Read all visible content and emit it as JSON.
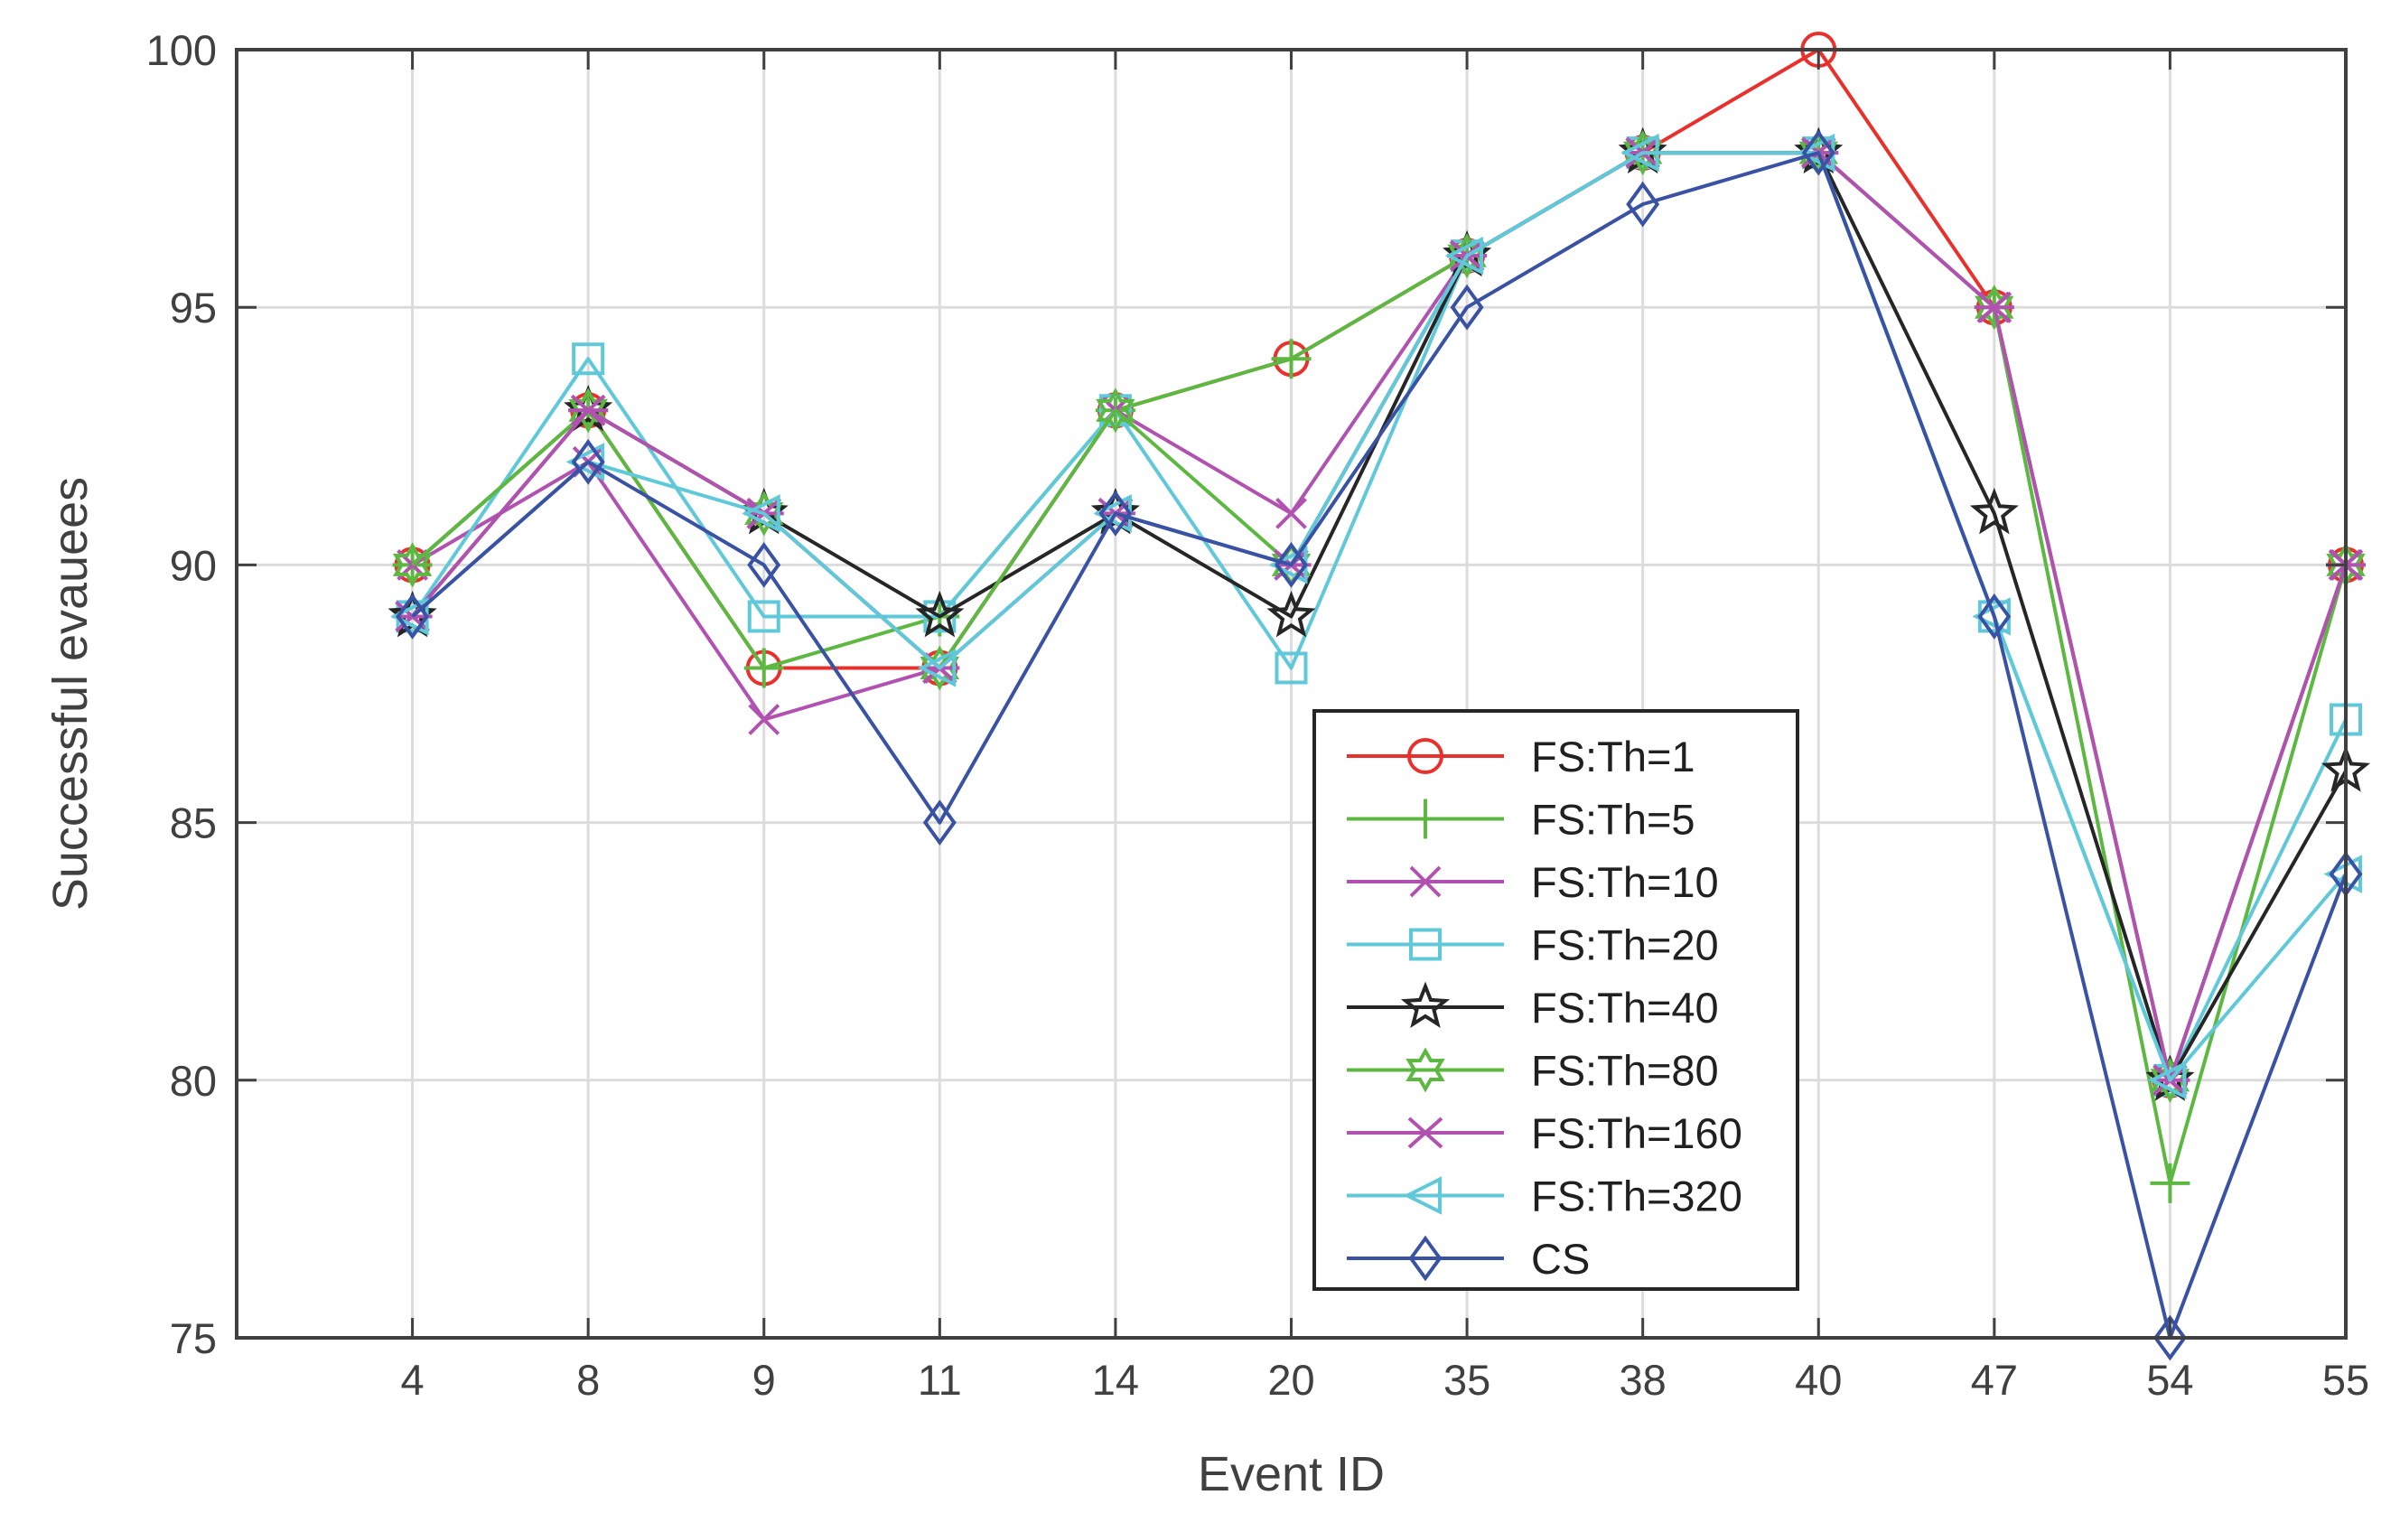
{
  "chart_data": {
    "type": "line",
    "title": "",
    "xlabel": "Event ID",
    "ylabel": "Successful evauees",
    "categories": [
      "4",
      "8",
      "9",
      "11",
      "14",
      "20",
      "35",
      "38",
      "40",
      "47",
      "54",
      "55"
    ],
    "ylim": [
      75,
      100
    ],
    "yticks": [
      75,
      80,
      85,
      90,
      95,
      100
    ],
    "grid": true,
    "legend_position": "bottom-center",
    "series": [
      {
        "name": "FS:Th=1",
        "color": "#e8302c",
        "marker": "circle",
        "values": [
          90,
          93,
          88,
          88,
          93,
          94,
          96,
          98,
          100,
          95,
          80,
          90
        ]
      },
      {
        "name": "FS:Th=5",
        "color": "#5db842",
        "marker": "plus",
        "values": [
          90,
          93,
          88,
          89,
          93,
          94,
          96,
          98,
          98,
          95,
          78,
          90
        ]
      },
      {
        "name": "FS:Th=10",
        "color": "#b152b0",
        "marker": "x",
        "values": [
          90,
          92,
          87,
          88,
          93,
          91,
          96,
          98,
          98,
          95,
          80,
          90
        ]
      },
      {
        "name": "FS:Th=20",
        "color": "#5fc8d9",
        "marker": "square",
        "values": [
          89,
          94,
          89,
          89,
          93,
          88,
          96,
          98,
          98,
          89,
          80,
          87
        ]
      },
      {
        "name": "FS:Th=40",
        "color": "#262626",
        "marker": "pentagram",
        "values": [
          89,
          93,
          91,
          89,
          91,
          89,
          96,
          98,
          98,
          91,
          80,
          86
        ]
      },
      {
        "name": "FS:Th=80",
        "color": "#5db842",
        "marker": "hexagram",
        "values": [
          90,
          93,
          91,
          88,
          93,
          90,
          96,
          98,
          98,
          95,
          80,
          90
        ]
      },
      {
        "name": "FS:Th=160",
        "color": "#b152b0",
        "marker": "asterisk",
        "values": [
          89,
          93,
          91,
          88,
          91,
          90,
          96,
          98,
          98,
          95,
          80,
          90
        ]
      },
      {
        "name": "FS:Th=320",
        "color": "#5fc8d9",
        "marker": "triangle-left",
        "values": [
          89,
          92,
          91,
          88,
          91,
          90,
          96,
          98,
          98,
          89,
          80,
          84
        ]
      },
      {
        "name": "CS",
        "color": "#3a52a4",
        "marker": "diamond",
        "values": [
          89,
          92,
          90,
          85,
          91,
          90,
          95,
          97,
          98,
          89,
          75,
          84
        ]
      }
    ]
  }
}
